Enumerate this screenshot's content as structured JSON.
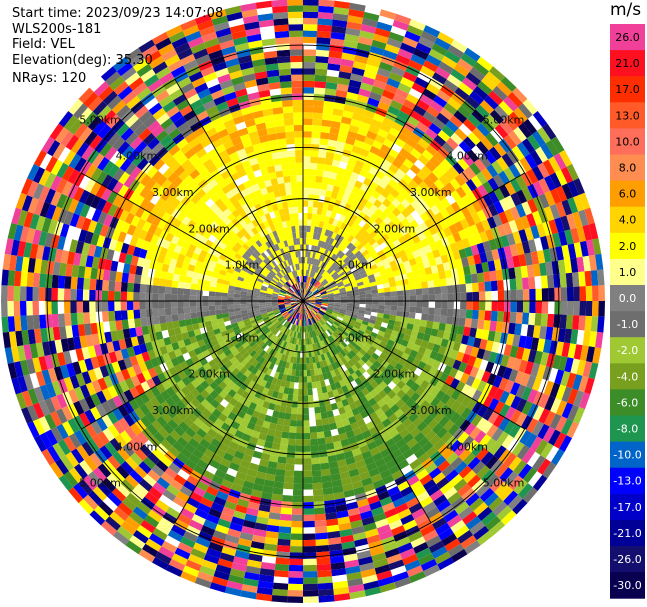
{
  "header": {
    "start_time": "Start time: 2023/09/23 14:07:08",
    "instrument": "WLS200s-181",
    "field": "Field: VEL",
    "elevation": "Elevation(deg): 35.30",
    "nrays": "NRays: 120"
  },
  "chart_data": {
    "type": "ppi",
    "field": "VEL",
    "units": "m/s",
    "rays": 120,
    "range_rings_km": [
      1.0,
      2.0,
      3.0,
      4.0,
      5.0
    ],
    "ring_labels": [
      "1.0km",
      "2.00km",
      "3.00km",
      "4.00km",
      "5.00km"
    ],
    "max_range_km": 5.9,
    "colorbar": {
      "min": -30.0,
      "max": 30.0,
      "ticks": [
        "26.0",
        "21.0",
        "17.0",
        "13.0",
        "10.0",
        "8.0",
        "6.0",
        "4.0",
        "2.0",
        "1.0",
        "0.0",
        "-1.0",
        "-2.0",
        "-4.0",
        "-6.0",
        "-8.0",
        "-10.0",
        "-13.0",
        "-17.0",
        "-21.0",
        "-26.0",
        "-30.0"
      ],
      "colors": [
        "#f0409a",
        "#ff1020",
        "#ff2e00",
        "#ff5a28",
        "#ff6e5a",
        "#ff8c50",
        "#ff9e00",
        "#ffd400",
        "#ffff00",
        "#ffff8c",
        "#808080",
        "#6e6e6e",
        "#a0c832",
        "#78a01e",
        "#3c8c28",
        "#1e9650",
        "#0064c8",
        "#0000ff",
        "#0000c8",
        "#000096",
        "#140f6e",
        "#0a0050"
      ]
    }
  }
}
